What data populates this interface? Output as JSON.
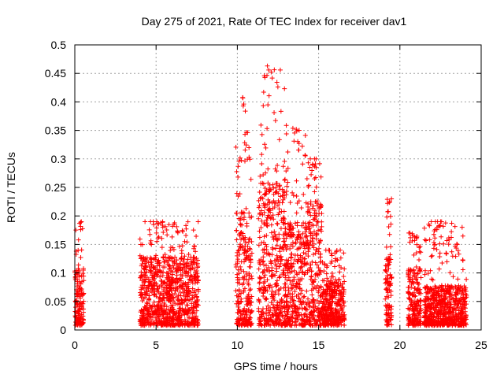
{
  "chart_data": {
    "type": "scatter",
    "title": "Day 275 of 2021, Rate Of TEC Index for receiver dav1",
    "xlabel": "GPS time / hours",
    "ylabel": "ROTI / TECUs",
    "xlim": [
      0,
      25
    ],
    "ylim": [
      0,
      0.5
    ],
    "xticks": [
      0,
      5,
      10,
      15,
      20,
      25
    ],
    "yticks": [
      0,
      0.05,
      0.1,
      0.15,
      0.2,
      0.25,
      0.3,
      0.35,
      0.4,
      0.45,
      0.5
    ],
    "grid": true,
    "marker": "+",
    "color": "#ff0000",
    "activity_clusters": [
      {
        "x_range": [
          0.0,
          0.55
        ],
        "typical_max": 0.1,
        "peak": 0.19
      },
      {
        "x_range": [
          4.0,
          7.6
        ],
        "typical_max": 0.12,
        "peak": 0.19
      },
      {
        "x_range": [
          9.9,
          10.9
        ],
        "typical_max": 0.2,
        "peak": 0.41
      },
      {
        "x_range": [
          11.3,
          12.9
        ],
        "typical_max": 0.25,
        "peak": 0.47
      },
      {
        "x_range": [
          12.9,
          14.2
        ],
        "typical_max": 0.18,
        "peak": 0.36
      },
      {
        "x_range": [
          14.2,
          15.2
        ],
        "typical_max": 0.22,
        "peak": 0.3
      },
      {
        "x_range": [
          15.2,
          16.6
        ],
        "typical_max": 0.08,
        "peak": 0.14
      },
      {
        "x_range": [
          19.1,
          19.5
        ],
        "typical_max": 0.12,
        "peak": 0.23
      },
      {
        "x_range": [
          20.5,
          21.3
        ],
        "typical_max": 0.1,
        "peak": 0.17
      },
      {
        "x_range": [
          21.5,
          24.1
        ],
        "typical_max": 0.07,
        "peak": 0.19
      }
    ]
  }
}
